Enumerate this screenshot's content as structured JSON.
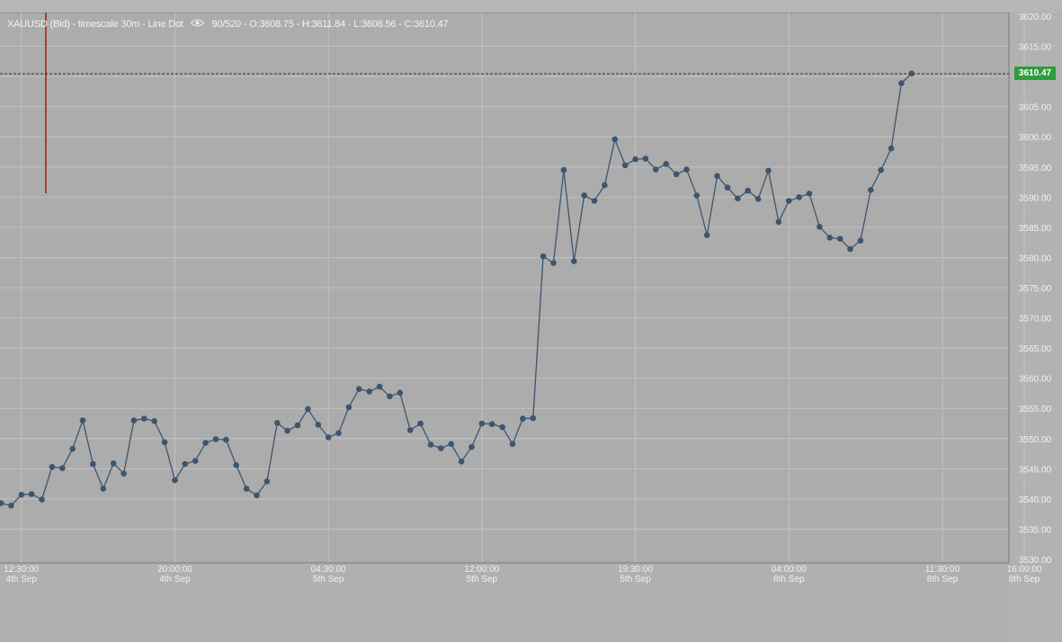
{
  "header": {
    "symbol_info": "XAUUSD (Bid) - timescale 30m - Line Dot",
    "visibility_icon": "eye-icon",
    "count": "90/520",
    "ohlc": "- O:3608.75 - H:3611.84 - L:3608.56 - C:3610.47"
  },
  "price_tag": {
    "label": "3610.47",
    "color": "#2e9d3d"
  },
  "colors": {
    "background": "#acacac",
    "line": "#3e556e",
    "grid": "#c2c2c2",
    "last_price_line": "#2a2a2a",
    "cursor_line": "#9e1d1d"
  },
  "chart_data": {
    "type": "line",
    "title": "",
    "xlabel": "",
    "ylabel": "",
    "ylim": [
      3530,
      3620
    ],
    "grid": true,
    "y_ticks": [
      "3620.00",
      "3615.00",
      "3610.00",
      "3605.00",
      "3600.00",
      "3595.00",
      "3590.00",
      "3585.00",
      "3580.00",
      "3575.00",
      "3570.00",
      "3565.00",
      "3560.00",
      "3555.00",
      "3550.00",
      "3545.00",
      "3540.00",
      "3535.00",
      "3530.00"
    ],
    "x_ticks": [
      {
        "time": "12:30:00",
        "date": "4th Sep"
      },
      {
        "time": "20:00:00",
        "date": "4th Sep"
      },
      {
        "time": "04:30:00",
        "date": "5th Sep"
      },
      {
        "time": "12:00:00",
        "date": "5th Sep"
      },
      {
        "time": "19:30:00",
        "date": "5th Sep"
      },
      {
        "time": "04:00:00",
        "date": "8th Sep"
      },
      {
        "time": "11:30:00",
        "date": "8th Sep"
      },
      {
        "time": "16:00:00",
        "date": "8th Sep"
      }
    ],
    "last_price": 3610.47,
    "series": [
      {
        "values": [
          3539.3,
          3538.9,
          3540.7,
          3540.8,
          3539.9,
          3545.3,
          3545.1,
          3548.3,
          3553.0,
          3545.8,
          3541.7,
          3545.9,
          3544.2,
          3553.0,
          3553.3,
          3552.9,
          3549.4,
          3543.1,
          3545.8,
          3546.3,
          3549.3,
          3549.9,
          3549.8,
          3545.6,
          3541.7,
          3540.6,
          3542.9,
          3552.6,
          3551.3,
          3552.2,
          3554.9,
          3552.3,
          3550.2,
          3550.9,
          3555.2,
          3558.2,
          3557.8,
          3558.6,
          3557.0,
          3557.6,
          3551.4,
          3552.5,
          3549.0,
          3548.4,
          3549.1,
          3546.2,
          3548.6,
          3552.5,
          3552.4,
          3551.9,
          3549.1,
          3553.3,
          3553.4,
          3580.2,
          3579.1,
          3594.5,
          3579.4,
          3590.3,
          3589.4,
          3592.0,
          3599.6,
          3595.3,
          3596.3,
          3596.4,
          3594.6,
          3595.5,
          3593.8,
          3594.6,
          3590.3,
          3583.7,
          3593.5,
          3591.6,
          3589.8,
          3591.1,
          3589.7,
          3594.4,
          3585.9,
          3589.4,
          3590.0,
          3590.6,
          3585.1,
          3583.3,
          3583.1,
          3581.4,
          3582.8,
          3591.2,
          3594.5,
          3598.1,
          3608.9,
          3610.5
        ]
      }
    ]
  }
}
